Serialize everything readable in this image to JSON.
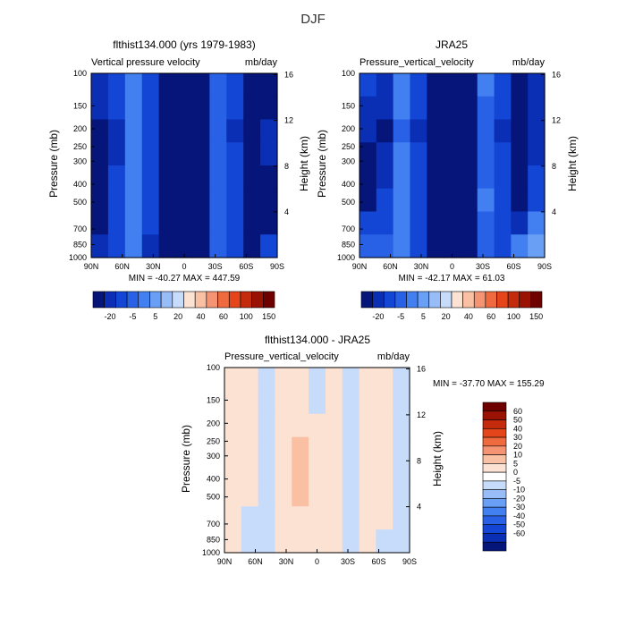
{
  "figure": {
    "title": "DJF"
  },
  "colors": {
    "neg": [
      "#05157a",
      "#0a2fb4",
      "#1446d6",
      "#2961e6",
      "#4280f2",
      "#6a9ff6",
      "#98bcf8",
      "#c7dcfb"
    ],
    "pos": [
      "#fbe2d3",
      "#f9c0a4",
      "#f59472",
      "#f06a40",
      "#e5451a",
      "#c42a0c",
      "#9a1204",
      "#6f0000"
    ],
    "white": "#ffffff"
  },
  "axes": {
    "pressure_ticks": [
      "100",
      "150",
      "200",
      "250",
      "300",
      "400",
      "500",
      "700",
      "850",
      "1000"
    ],
    "pressure_values": [
      100,
      150,
      200,
      250,
      300,
      400,
      500,
      700,
      850,
      1000
    ],
    "height_ticks": [
      "16",
      "12",
      "8",
      "4"
    ],
    "height_values": [
      16,
      12,
      8,
      4
    ],
    "lat_ticks": [
      "90N",
      "60N",
      "30N",
      "0",
      "30S",
      "60S",
      "90S"
    ],
    "lat_values": [
      90,
      60,
      30,
      0,
      -30,
      -60,
      -90
    ],
    "ylabel": "Pressure (mb)",
    "ylabel_right": "Height (km)"
  },
  "panels": [
    {
      "title": "flthist134.000 (yrs 1979-1983)",
      "subtitle_left": "Vertical pressure velocity",
      "subtitle_right": "mb/day",
      "stats": "MIN = -40.27   MAX = 447.59"
    },
    {
      "title": "JRA25",
      "subtitle_left": "Pressure_vertical_velocity",
      "subtitle_right": "mb/day",
      "stats": "MIN = -42.17   MAX =   61.03"
    },
    {
      "title": "flthist134.000 - JRA25",
      "subtitle_left": "Pressure_vertical_velocity",
      "subtitle_right": "mb/day",
      "stats": "MIN = -37.70   MAX = 155.29"
    }
  ],
  "colorbar_top": {
    "labels": [
      "-20",
      "-5",
      "5",
      "20",
      "40",
      "60",
      "100",
      "150"
    ]
  },
  "colorbar_diff": {
    "labels": [
      "60",
      "50",
      "40",
      "30",
      "20",
      "10",
      "5",
      "0",
      "-5",
      "-10",
      "-20",
      "-30",
      "-40",
      "-50",
      "-60"
    ]
  },
  "chart_data": [
    {
      "type": "heatmap",
      "title": "flthist134.000 (yrs 1979-1983)",
      "subtitle": "Vertical pressure velocity",
      "units": "mb/day",
      "xlabel": "",
      "ylabel": "Pressure (mb)",
      "ylabel_right": "Height (km)",
      "x": [
        90,
        60,
        30,
        0,
        -30,
        -60,
        -90
      ],
      "x_tick_labels": [
        "90N",
        "60N",
        "30N",
        "0",
        "30S",
        "60S",
        "90S"
      ],
      "y": [
        100,
        150,
        200,
        250,
        300,
        400,
        500,
        700,
        850,
        1000
      ],
      "y_scale": "log",
      "approx_values": [
        [
          -15,
          -12,
          -2,
          -12,
          -20,
          -30,
          -20,
          -5,
          -12,
          -20,
          -20
        ],
        [
          -18,
          -14,
          -3,
          -13,
          -22,
          -33,
          -22,
          -6,
          -14,
          -22,
          -20
        ],
        [
          -20,
          -16,
          -4,
          -14,
          -24,
          -36,
          -24,
          -8,
          -15,
          -24,
          -18
        ],
        [
          -22,
          -15,
          -3,
          -13,
          -26,
          -38,
          -26,
          -7,
          -14,
          -25,
          -18
        ],
        [
          -24,
          -14,
          -2,
          -12,
          -28,
          -40,
          -28,
          -6,
          -13,
          -26,
          -20
        ],
        [
          -24,
          -12,
          -1,
          -12,
          -27,
          -38,
          -27,
          -5,
          -12,
          -25,
          -22
        ],
        [
          -20,
          -10,
          0,
          -14,
          -25,
          -34,
          -25,
          -6,
          -11,
          -22,
          -20
        ],
        [
          -18,
          -10,
          -2,
          -16,
          -30,
          -35,
          -26,
          -8,
          -12,
          -22,
          -10
        ]
      ],
      "min": -40.27,
      "max": 447.59
    },
    {
      "type": "heatmap",
      "title": "JRA25",
      "subtitle": "Pressure_vertical_velocity",
      "units": "mb/day",
      "xlabel": "",
      "ylabel": "Pressure (mb)",
      "ylabel_right": "Height (km)",
      "x": [
        90,
        60,
        30,
        0,
        -30,
        -60,
        -90
      ],
      "x_tick_labels": [
        "90N",
        "60N",
        "30N",
        "0",
        "30S",
        "60S",
        "90S"
      ],
      "y": [
        100,
        150,
        200,
        250,
        300,
        400,
        500,
        700,
        850,
        1000
      ],
      "y_scale": "log",
      "approx_values": [
        [
          -14,
          -16,
          -3,
          -12,
          -22,
          -32,
          -20,
          -4,
          -12,
          -20,
          -18
        ],
        [
          -16,
          -18,
          -4,
          -14,
          -24,
          -36,
          -22,
          -5,
          -14,
          -22,
          -18
        ],
        [
          -18,
          -20,
          -5,
          -15,
          -26,
          -40,
          -24,
          -6,
          -15,
          -22,
          -16
        ],
        [
          -20,
          -18,
          -4,
          -14,
          -28,
          -42,
          -26,
          -6,
          -14,
          -24,
          -16
        ],
        [
          -22,
          -16,
          -2,
          -13,
          -26,
          -40,
          -26,
          -5,
          -13,
          -24,
          -14
        ],
        [
          -20,
          -14,
          -1,
          -12,
          -24,
          -36,
          -25,
          -4,
          -12,
          -22,
          -12
        ],
        [
          -14,
          -10,
          2,
          -12,
          -22,
          -30,
          -24,
          -5,
          -10,
          -18,
          -4
        ],
        [
          -6,
          -8,
          0,
          -14,
          -26,
          -32,
          -24,
          -6,
          -10,
          -4,
          10
        ]
      ],
      "min": -42.17,
      "max": 61.03
    },
    {
      "type": "heatmap",
      "title": "flthist134.000 - JRA25",
      "subtitle": "Pressure_vertical_velocity",
      "units": "mb/day",
      "xlabel": "",
      "ylabel": "Pressure (mb)",
      "ylabel_right": "Height (km)",
      "x": [
        90,
        60,
        30,
        0,
        -30,
        -60,
        -90
      ],
      "x_tick_labels": [
        "90N",
        "60N",
        "30N",
        "0",
        "30S",
        "60S",
        "90S"
      ],
      "y": [
        100,
        150,
        200,
        250,
        300,
        400,
        500,
        700,
        850,
        1000
      ],
      "y_scale": "log",
      "approx_values": [
        [
          2,
          1,
          -2,
          1,
          2,
          -1,
          2,
          -2,
          2,
          2,
          -2
        ],
        [
          2,
          1,
          -2,
          1,
          3,
          -1,
          2,
          -2,
          2,
          2,
          -2
        ],
        [
          3,
          1,
          -2,
          1,
          4,
          0,
          2,
          -2,
          2,
          2,
          -2
        ],
        [
          3,
          0,
          -2,
          1,
          7,
          1,
          2,
          -2,
          2,
          2,
          -2
        ],
        [
          3,
          0,
          -2,
          2,
          8,
          1,
          2,
          -3,
          2,
          2,
          -3
        ],
        [
          3,
          0,
          -2,
          2,
          6,
          1,
          2,
          -3,
          2,
          1,
          -3
        ],
        [
          3,
          -2,
          -2,
          2,
          4,
          1,
          2,
          -3,
          2,
          1,
          -3
        ],
        [
          4,
          -3,
          -3,
          2,
          3,
          2,
          2,
          -4,
          2,
          -2,
          -4
        ]
      ],
      "min": -37.7,
      "max": 155.29
    }
  ]
}
